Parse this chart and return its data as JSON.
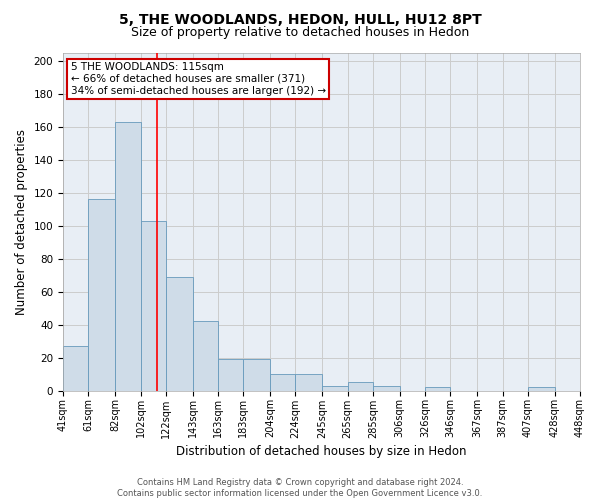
{
  "title1": "5, THE WOODLANDS, HEDON, HULL, HU12 8PT",
  "title2": "Size of property relative to detached houses in Hedon",
  "xlabel": "Distribution of detached houses by size in Hedon",
  "ylabel": "Number of detached properties",
  "bin_labels": [
    "41sqm",
    "61sqm",
    "82sqm",
    "102sqm",
    "122sqm",
    "143sqm",
    "163sqm",
    "183sqm",
    "204sqm",
    "224sqm",
    "245sqm",
    "265sqm",
    "285sqm",
    "306sqm",
    "326sqm",
    "346sqm",
    "367sqm",
    "387sqm",
    "407sqm",
    "428sqm",
    "448sqm"
  ],
  "bar_heights": [
    27,
    116,
    163,
    103,
    69,
    42,
    19,
    19,
    10,
    10,
    3,
    5,
    3,
    0,
    2,
    0,
    0,
    0,
    2,
    0
  ],
  "bar_color": "#cfdce8",
  "bar_edge_color": "#6699bb",
  "property_line_x": 115,
  "bin_edges": [
    41,
    61,
    82,
    102,
    122,
    143,
    163,
    183,
    204,
    224,
    245,
    265,
    285,
    306,
    326,
    346,
    367,
    387,
    407,
    428,
    448
  ],
  "annotation_line1": "5 THE WOODLANDS: 115sqm",
  "annotation_line2": "← 66% of detached houses are smaller (371)",
  "annotation_line3": "34% of semi-detached houses are larger (192) →",
  "annotation_box_color": "#cc0000",
  "ylim": [
    0,
    205
  ],
  "yticks": [
    0,
    20,
    40,
    60,
    80,
    100,
    120,
    140,
    160,
    180,
    200
  ],
  "grid_color": "#cccccc",
  "bg_color": "#e8eef5",
  "footer": "Contains HM Land Registry data © Crown copyright and database right 2024.\nContains public sector information licensed under the Open Government Licence v3.0.",
  "title1_fontsize": 10,
  "title2_fontsize": 9,
  "xlabel_fontsize": 8.5,
  "ylabel_fontsize": 8.5,
  "tick_fontsize": 7,
  "annot_fontsize": 7.5,
  "footer_fontsize": 6
}
